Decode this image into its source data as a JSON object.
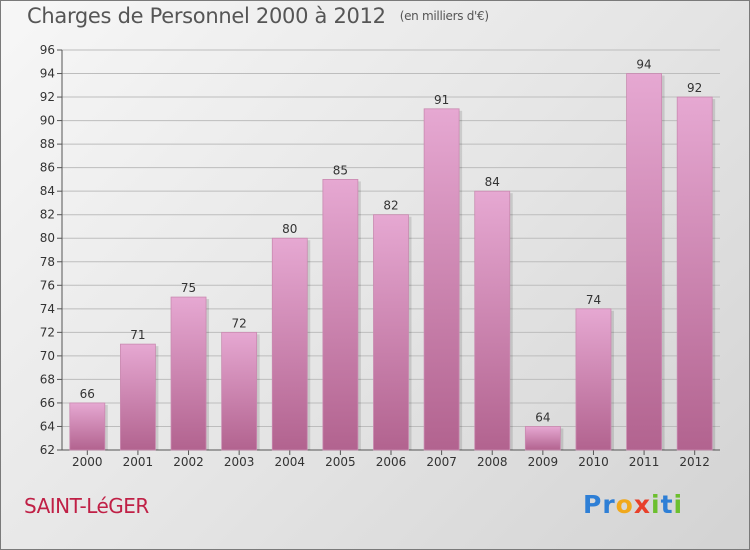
{
  "title": "Charges de Personnel 2000 à 2012",
  "subtitle": "(en milliers d'€)",
  "place": "SAINT-LéGER",
  "logo": {
    "letters": [
      "P",
      "r",
      "o",
      "x",
      "i",
      "t",
      "i"
    ],
    "colors": [
      "#2e7fd6",
      "#2e7fd6",
      "#f0a81c",
      "#e8402a",
      "#6cbf2e",
      "#2e7fd6",
      "#6cbf2e"
    ]
  },
  "colors": {
    "bar_top": "#e6a8d2",
    "bar_bottom": "#b2638f",
    "grid": "#bdbdbd"
  },
  "chart_data": {
    "type": "bar",
    "categories": [
      "2000",
      "2001",
      "2002",
      "2003",
      "2004",
      "2005",
      "2006",
      "2007",
      "2008",
      "2009",
      "2010",
      "2011",
      "2012"
    ],
    "values": [
      66,
      71,
      75,
      72,
      80,
      85,
      82,
      91,
      84,
      64,
      74,
      94,
      92
    ],
    "ylim": [
      62,
      96
    ],
    "yticks": [
      62,
      64,
      66,
      68,
      70,
      72,
      74,
      76,
      78,
      80,
      82,
      84,
      86,
      88,
      90,
      92,
      94,
      96
    ],
    "grid": true,
    "xlabel": "",
    "ylabel": ""
  }
}
